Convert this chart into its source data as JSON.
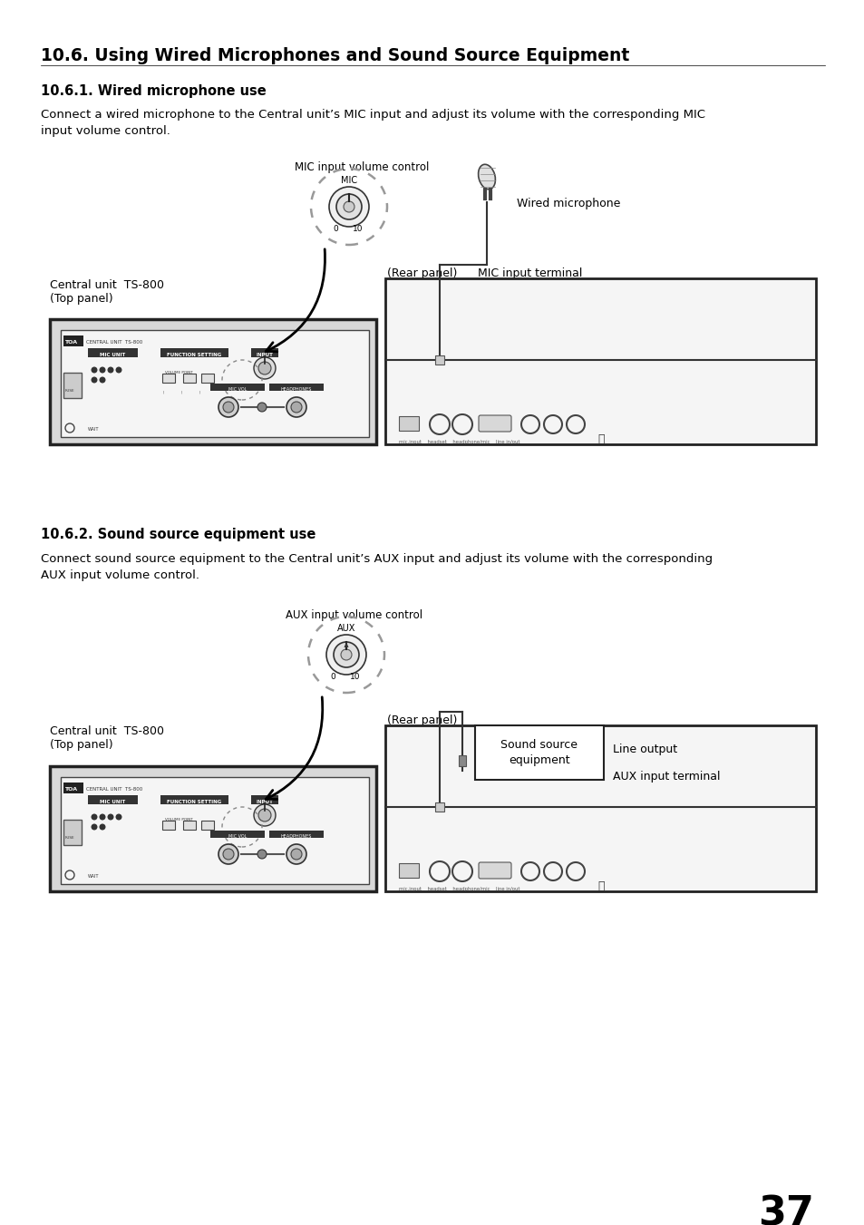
{
  "title": "10.6. Using Wired Microphones and Sound Source Equipment",
  "section1_title": "10.6.1. Wired microphone use",
  "section1_text": "Connect a wired microphone to the Central unit’s MIC input and adjust its volume with the corresponding MIC\ninput volume control.",
  "section2_title": "10.6.2. Sound source equipment use",
  "section2_text": "Connect sound source equipment to the Central unit’s AUX input and adjust its volume with the corresponding\nAUX input volume control.",
  "page_number": "37",
  "bg_color": "#ffffff",
  "text_color": "#000000",
  "label_mic_volume": "MIC input volume control",
  "label_aux_volume": "AUX input volume control",
  "label_central_unit1": "Central unit  TS-800\n(Top panel)",
  "label_rear_panel1": "(Rear panel)",
  "label_mic_input_terminal": "MIC input terminal",
  "label_wired_mic": "Wired microphone",
  "label_central_unit2": "Central unit  TS-800\n(Top panel)",
  "label_rear_panel2": "(Rear panel)",
  "label_aux_input_terminal": "AUX input terminal",
  "label_sound_source": "Sound source\nequipment",
  "label_line_output": "Line output"
}
